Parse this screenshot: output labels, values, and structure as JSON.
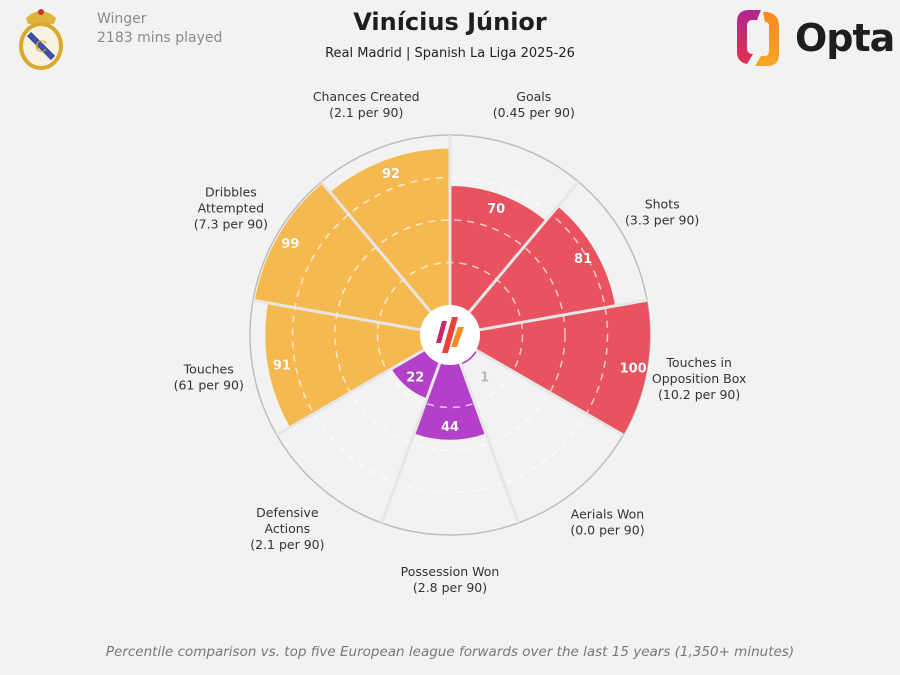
{
  "header": {
    "position": "Winger",
    "minutes": "2183 mins played",
    "title": "Vinícius Júnior",
    "subtitle": "Real Madrid | Spanish La Liga 2025-26",
    "brand": "Opta",
    "club_crest": "real-madrid-crest"
  },
  "footer": "Percentile comparison vs. top five European league forwards over the last 15 years (1,350+ minutes)",
  "colors": {
    "attacking": "#e9525f",
    "possession": "#f5b94f",
    "defending": "#b43fc8",
    "background": "#f2f2f2"
  },
  "chart_data": {
    "type": "pizza",
    "rlim": [
      0,
      100
    ],
    "gridlines": [
      25,
      50,
      75,
      100
    ],
    "categories": [
      {
        "label": [
          "Goals",
          "(0.45 per 90)"
        ],
        "value": 70,
        "group": "attacking"
      },
      {
        "label": [
          "Shots",
          "(3.3 per 90)"
        ],
        "value": 81,
        "group": "attacking"
      },
      {
        "label": [
          "Touches in",
          "Opposition Box",
          "(10.2 per 90)"
        ],
        "value": 100,
        "group": "attacking"
      },
      {
        "label": [
          "Aerials Won",
          "(0.0 per 90)"
        ],
        "value": 1,
        "group": "defending"
      },
      {
        "label": [
          "Possession Won",
          "(2.8 per 90)"
        ],
        "value": 44,
        "group": "defending"
      },
      {
        "label": [
          "Defensive",
          "Actions",
          "(2.1 per 90)"
        ],
        "value": 22,
        "group": "defending"
      },
      {
        "label": [
          "Touches",
          "(61 per 90)"
        ],
        "value": 91,
        "group": "possession"
      },
      {
        "label": [
          "Dribbles",
          "Attempted",
          "(7.3 per 90)"
        ],
        "value": 99,
        "group": "possession"
      },
      {
        "label": [
          "Chances Created",
          "(2.1 per 90)"
        ],
        "value": 92,
        "group": "possession"
      }
    ]
  }
}
